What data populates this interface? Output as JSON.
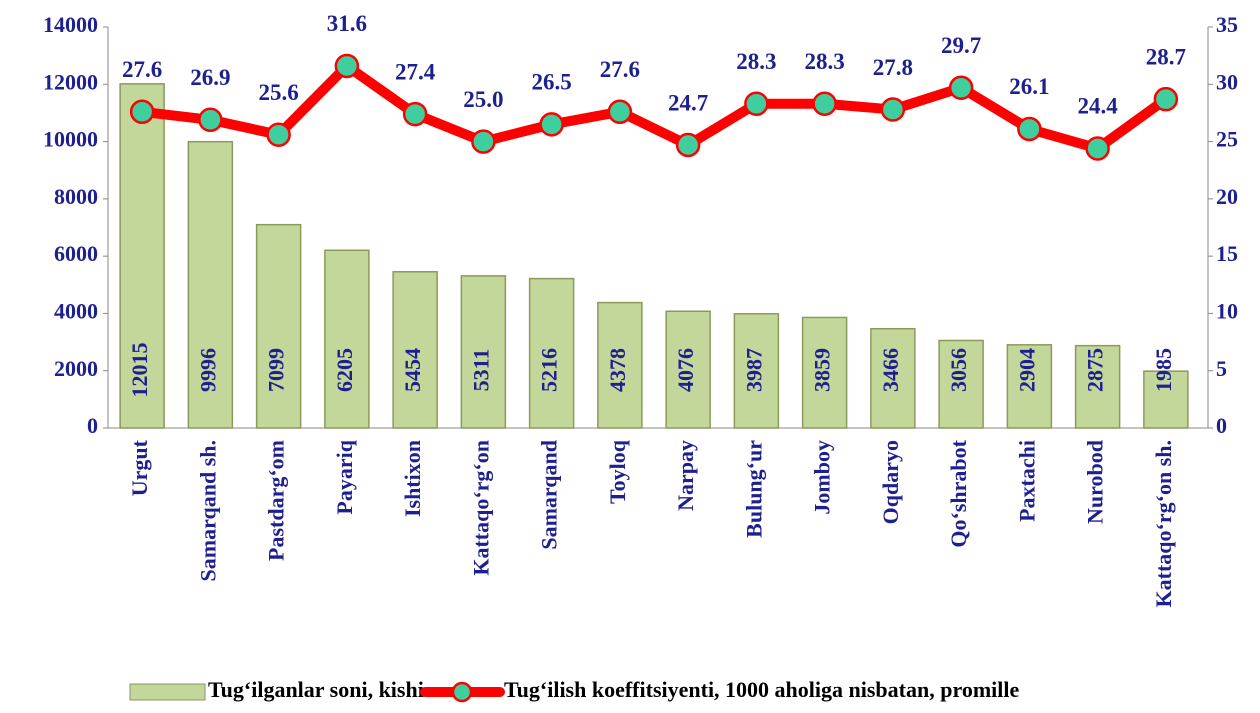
{
  "chart_data": {
    "type": "combo",
    "categories": [
      "Urgut",
      "Samarqand sh.",
      "Pastdarg‘om",
      "Payariq",
      "Ishtixon",
      "Kattaqo‘rg‘on",
      "Samarqand",
      "Toyloq",
      "Narpay",
      "Bulung‘ur",
      "Jomboy",
      "Oqdaryo",
      "Qo‘shrabot",
      "Paxtachi",
      "Nurobod",
      "Kattaqo‘rg‘on sh."
    ],
    "series": [
      {
        "name": "Tug‘ilganlar soni, kishi",
        "type": "bar",
        "color": "#c4d79b",
        "values": [
          12015,
          9996,
          7099,
          6205,
          5454,
          5311,
          5216,
          4378,
          4076,
          3987,
          3859,
          3466,
          3056,
          2904,
          2875,
          1985
        ]
      },
      {
        "name": "Tug‘ilish koeffitsiyenti, 1000 aholiga nisbatan, promille",
        "type": "line",
        "axis": "y2",
        "color": "#ff0000",
        "marker_color": "#3fcf9f",
        "values": [
          27.6,
          26.9,
          25.6,
          31.6,
          27.4,
          25.0,
          26.5,
          27.6,
          24.7,
          28.3,
          28.3,
          27.8,
          29.7,
          26.1,
          24.4,
          28.7
        ],
        "value_labels": [
          "27.6",
          "26.9",
          "25.6",
          "31.6",
          "27.4",
          "25.0",
          "26.5",
          "27.6",
          "24.7",
          "28.3",
          "28.3",
          "27.8",
          "29.7",
          "26.1",
          "24.4",
          "28.7"
        ]
      }
    ],
    "ylim": [
      0,
      14000
    ],
    "yticks": [
      0,
      2000,
      4000,
      6000,
      8000,
      10000,
      12000,
      14000
    ],
    "y2lim": [
      0,
      35
    ],
    "y2ticks": [
      0,
      5,
      10,
      15,
      20,
      25,
      30,
      35
    ],
    "legend": "bottom"
  }
}
